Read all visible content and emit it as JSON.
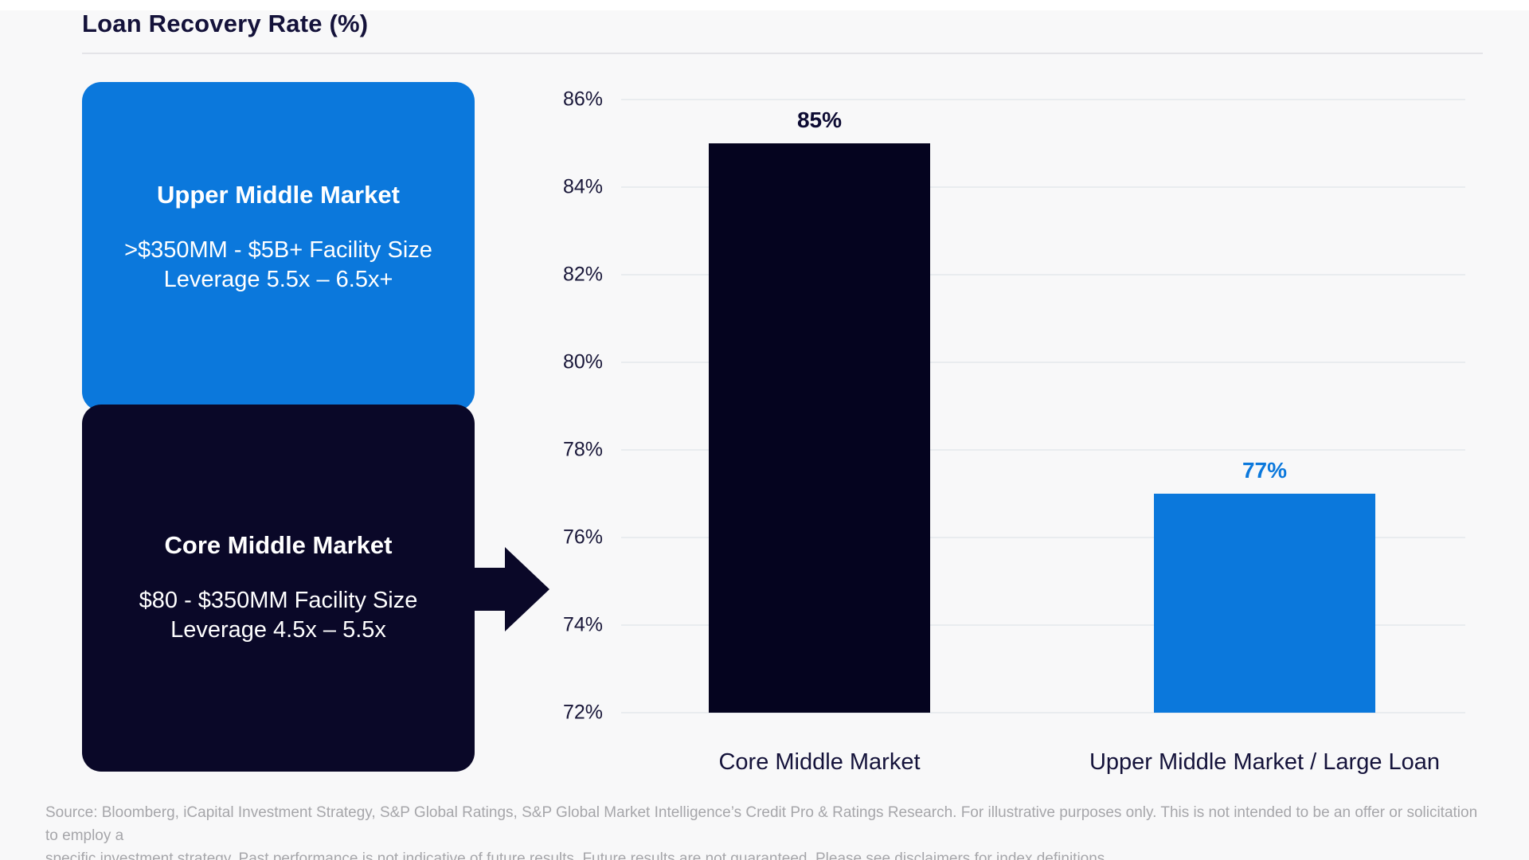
{
  "page": {
    "title": "Loan Recovery Rate (%)"
  },
  "colors": {
    "accent_blue": "#0b78dc",
    "dark_navy": "#0a0828",
    "bar_navy": "#05041f",
    "title_text": "#14123a",
    "gridline": "#e9ecef",
    "divider": "#e4e4e8",
    "footnote_gray": "#a6a6aa",
    "background": "#f8f8f9"
  },
  "segments": [
    {
      "id": "upper-middle-market",
      "title": "Upper Middle Market",
      "detail_line1": ">$350MM - $5B+ Facility Size",
      "detail_line2": "Leverage 5.5x – 6.5x+"
    },
    {
      "id": "core-middle-market",
      "title": "Core Middle Market",
      "detail_line1": "$80 - $350MM Facility Size",
      "detail_line2": "Leverage 4.5x – 5.5x"
    }
  ],
  "chart_data": {
    "type": "bar",
    "title": "Loan Recovery Rate (%)",
    "categories": [
      "Core Middle Market",
      "Upper Middle Market / Large Loan"
    ],
    "values": [
      85,
      77
    ],
    "value_labels": [
      "85%",
      "77%"
    ],
    "bar_colors": [
      "#05041f",
      "#0b78dc"
    ],
    "value_label_colors": [
      "#0d0b33",
      "#0b78dc"
    ],
    "ylabel": "",
    "xlabel": "",
    "ylim": [
      72,
      86
    ],
    "yticks": [
      86,
      84,
      82,
      80,
      78,
      76,
      74,
      72
    ],
    "ytick_labels": [
      "86%",
      "84%",
      "82%",
      "80%",
      "78%",
      "76%",
      "74%",
      "72%"
    ],
    "grid": true,
    "legend_position": "none"
  },
  "footer": {
    "line1": "Source: Bloomberg, iCapital Investment Strategy, S&P Global Ratings, S&P Global Market Intelligence’s Credit Pro & Ratings Research. For illustrative purposes only. This is not intended to be an offer or solicitation to employ a",
    "line2": "specific investment strategy. Past performance is not indicative of future results. Future results are not guaranteed. Please see disclaimers for index definitions."
  }
}
